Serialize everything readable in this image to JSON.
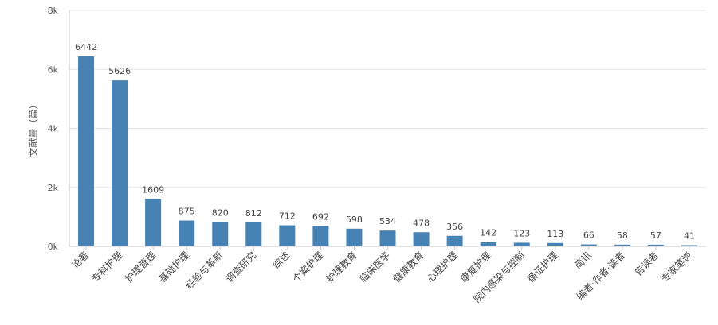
{
  "chart_data": {
    "type": "bar",
    "title": "",
    "xlabel": "",
    "ylabel": "文献量（篇）",
    "ylim": [
      0,
      8000
    ],
    "yticks": [
      {
        "value": 0,
        "label": "0k"
      },
      {
        "value": 2000,
        "label": "2k"
      },
      {
        "value": 4000,
        "label": "4k"
      },
      {
        "value": 6000,
        "label": "6k"
      },
      {
        "value": 8000,
        "label": "8k"
      }
    ],
    "grid": true,
    "bar_color": "#4682b4",
    "categories": [
      "论著",
      "专科护理",
      "护理管理",
      "基础护理",
      "经验与革新",
      "调查研究",
      "综述",
      "个案护理",
      "护理教育",
      "临床医学",
      "健康教育",
      "心理护理",
      "康复护理",
      "院内感染与控制",
      "循证护理",
      "简讯",
      "编者·作者·读者",
      "告读者",
      "专家笔谈"
    ],
    "values": [
      6442,
      5626,
      1609,
      875,
      820,
      812,
      712,
      692,
      598,
      534,
      478,
      356,
      142,
      123,
      113,
      66,
      58,
      57,
      41
    ],
    "value_labels": [
      "6442",
      "5626",
      "1609",
      "875",
      "820",
      "812",
      "712",
      "692",
      "598",
      "534",
      "478",
      "356",
      "142",
      "123",
      "113",
      "66",
      "58",
      "57",
      "41"
    ]
  }
}
